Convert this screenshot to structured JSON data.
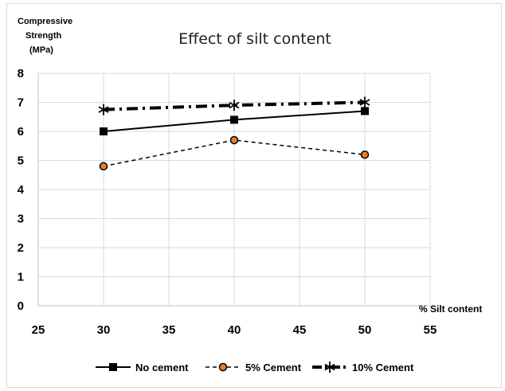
{
  "chart_data": {
    "type": "line",
    "title": "Effect of silt content",
    "ylabel_lines": [
      "Compressive",
      "Strength",
      "(MPa)"
    ],
    "xlabel": "% Silt content",
    "xlim": [
      25,
      55
    ],
    "ylim": [
      0,
      8
    ],
    "xticks": [
      25,
      30,
      35,
      40,
      45,
      50,
      55
    ],
    "yticks": [
      0,
      1,
      2,
      3,
      4,
      5,
      6,
      7,
      8
    ],
    "grid": true,
    "legend_position": "bottom",
    "x": [
      30,
      40,
      50
    ],
    "series": [
      {
        "name": "No cement",
        "values": [
          6.0,
          6.4,
          6.7
        ],
        "color": "#000000",
        "dash": "solid",
        "marker": "square"
      },
      {
        "name": "5% Cement",
        "values": [
          4.8,
          5.7,
          5.2
        ],
        "color": "#000000",
        "marker_fill": "#e87d2a",
        "dash": "dashed",
        "marker": "circle"
      },
      {
        "name": "10% Cement",
        "values": [
          6.75,
          6.9,
          7.0
        ],
        "color": "#000000",
        "dash": "dashdot",
        "marker": "star"
      }
    ]
  }
}
